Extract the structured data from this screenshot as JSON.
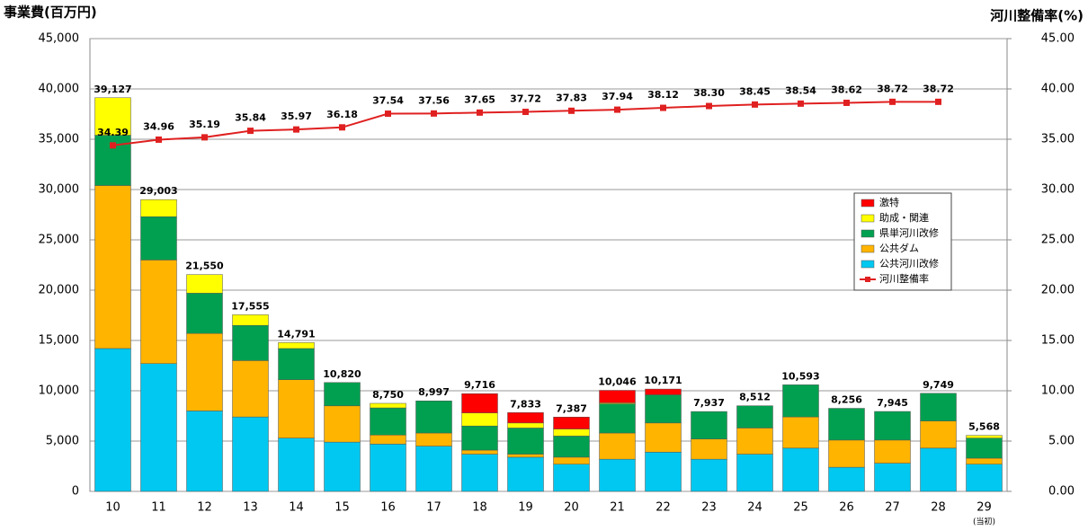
{
  "chart_data": {
    "type": "stacked-bar-line",
    "y_axis_title": "事業費(百万円)",
    "y2_axis_title": "河川整備率(%)",
    "categories": [
      "10",
      "11",
      "12",
      "13",
      "14",
      "15",
      "16",
      "17",
      "18",
      "19",
      "20",
      "21",
      "22",
      "23",
      "24",
      "25",
      "26",
      "27",
      "28",
      "29"
    ],
    "annotations": [
      {
        "category": "29",
        "text": "(当初)"
      }
    ],
    "series": [
      {
        "name": "公共河川改修",
        "color": "#00c8f0",
        "values": [
          14200,
          12700,
          8000,
          7400,
          5300,
          4900,
          4700,
          4500,
          3700,
          3400,
          2700,
          3200,
          3900,
          3200,
          3700,
          4300,
          2400,
          2800,
          4300,
          2700
        ]
      },
      {
        "name": "公共ダム",
        "color": "#ffb400",
        "values": [
          16200,
          10300,
          7700,
          5600,
          5800,
          3600,
          900,
          1300,
          400,
          300,
          700,
          2600,
          2900,
          2000,
          2600,
          3100,
          2700,
          2300,
          2700,
          600
        ]
      },
      {
        "name": "県単河川改修",
        "color": "#00a050",
        "values": [
          5000,
          4300,
          4000,
          3500,
          3100,
          2320,
          2700,
          3197,
          2400,
          2600,
          2100,
          2900,
          2800,
          2737,
          2212,
          3193,
          3156,
          2845,
          2749,
          2000
        ]
      },
      {
        "name": "助成・関連",
        "color": "#ffff00",
        "values": [
          3727,
          1703,
          1850,
          1055,
          591,
          0,
          450,
          0,
          1300,
          500,
          700,
          100,
          0,
          0,
          0,
          0,
          0,
          0,
          0,
          268
        ]
      },
      {
        "name": "激特",
        "color": "#ff0000",
        "values": [
          0,
          0,
          0,
          0,
          0,
          0,
          0,
          0,
          1916,
          1033,
          1187,
          1246,
          571,
          0,
          0,
          0,
          0,
          0,
          0,
          0
        ]
      },
      {
        "name": "河川整備率",
        "color": "#e02020",
        "axis": "y2",
        "values": [
          34.39,
          34.96,
          35.19,
          35.84,
          35.97,
          36.18,
          37.54,
          37.56,
          37.65,
          37.72,
          37.83,
          37.94,
          38.12,
          38.3,
          38.45,
          38.54,
          38.62,
          38.72,
          38.72,
          null
        ],
        "value_labels": [
          "34.39",
          "34.96",
          "35.19",
          "35.84",
          "35.97",
          "36.18",
          "37.54",
          "37.56",
          "37.65",
          "37.72",
          "37.83",
          "37.94",
          "38.12",
          "38.30",
          "38.45",
          "38.54",
          "38.62",
          "38.72",
          "38.72",
          null
        ]
      }
    ],
    "total_labels": [
      "39,127",
      "29,003",
      "21,550",
      "17,555",
      "14,791",
      "10,820",
      "8,750",
      "8,997",
      "9,716",
      "7,833",
      "7,387",
      "10,046",
      "10,171",
      "7,937",
      "8,512",
      "10,593",
      "8,256",
      "7,945",
      "9,749",
      "5,568"
    ],
    "ylim": [
      0,
      45000
    ],
    "yticks": [
      0,
      {
        "value": 5000,
        "label": "5,000"
      },
      {
        "value": 10000,
        "label": "10,000"
      },
      {
        "value": 15000,
        "label": "15,000"
      },
      {
        "value": 20000,
        "label": "20,000"
      },
      {
        "value": 25000,
        "label": "25,000"
      },
      {
        "value": 30000,
        "label": "30,000"
      },
      {
        "value": 35000,
        "label": "35,000"
      },
      {
        "value": 40000,
        "label": "40,000"
      },
      {
        "value": 45000,
        "label": "45,000"
      }
    ],
    "y2lim": [
      0,
      45
    ],
    "y2ticks": [
      {
        "value": 0,
        "label": "0.00"
      },
      {
        "value": 5,
        "label": "5.00"
      },
      {
        "value": 10,
        "label": "10.00"
      },
      {
        "value": 15,
        "label": "15.00"
      },
      {
        "value": 20,
        "label": "20.00"
      },
      {
        "value": 25,
        "label": "25.00"
      },
      {
        "value": 30,
        "label": "30.00"
      },
      {
        "value": 35,
        "label": "35.00"
      },
      {
        "value": 40,
        "label": "40.00"
      },
      {
        "value": 45,
        "label": "45.00"
      }
    ],
    "grid": true,
    "legend": "right"
  }
}
